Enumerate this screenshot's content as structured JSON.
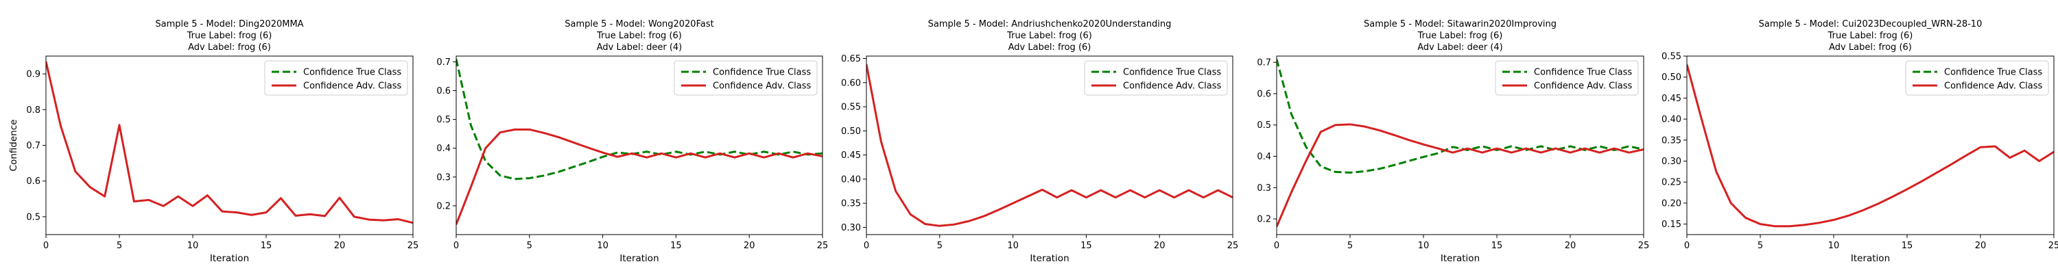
{
  "figure": {
    "background": "#ffffff"
  },
  "legend_labels": {
    "true_class": "Confidence True Class",
    "adv_class": "Confidence Adv. Class"
  },
  "series_colors": {
    "true_class": "#008000",
    "adv_class": "#d62020"
  },
  "chart_data": [
    {
      "type": "line",
      "title": [
        "Sample 5 - Model: Ding2020MMA",
        "True Label: frog (6)",
        "Adv Label: frog (6)"
      ],
      "xlabel": "Iteration",
      "ylabel": "Confidence",
      "xlim": [
        0,
        25
      ],
      "ylim": [
        0.45,
        0.95
      ],
      "xticks": [
        0,
        5,
        10,
        15,
        20,
        25
      ],
      "yticks": [
        0.5,
        0.6,
        0.7,
        0.8,
        0.9
      ],
      "ytick_labels": [
        "0.5",
        "0.6",
        "0.7",
        "0.8",
        "0.9"
      ],
      "legend_position": "upper right",
      "grid": false,
      "series": [
        {
          "key": "adv_class",
          "values": [
            [
              0,
              0.935
            ],
            [
              1,
              0.755
            ],
            [
              2,
              0.627
            ],
            [
              3,
              0.583
            ],
            [
              4,
              0.557
            ],
            [
              5,
              0.757
            ],
            [
              6,
              0.543
            ],
            [
              7,
              0.547
            ],
            [
              8,
              0.53
            ],
            [
              9,
              0.557
            ],
            [
              10,
              0.53
            ],
            [
              11,
              0.56
            ],
            [
              12,
              0.515
            ],
            [
              13,
              0.512
            ],
            [
              14,
              0.505
            ],
            [
              15,
              0.512
            ],
            [
              16,
              0.552
            ],
            [
              17,
              0.503
            ],
            [
              18,
              0.507
            ],
            [
              19,
              0.502
            ],
            [
              20,
              0.553
            ],
            [
              21,
              0.5
            ],
            [
              22,
              0.492
            ],
            [
              23,
              0.49
            ],
            [
              24,
              0.493
            ],
            [
              25,
              0.483
            ]
          ]
        }
      ]
    },
    {
      "type": "line",
      "title": [
        "Sample 5 - Model: Wong2020Fast",
        "True Label: frog (6)",
        "Adv Label: deer (4)"
      ],
      "xlabel": "Iteration",
      "ylabel": "",
      "xlim": [
        0,
        25
      ],
      "ylim": [
        0.1,
        0.72
      ],
      "xticks": [
        0,
        5,
        10,
        15,
        20,
        25
      ],
      "yticks": [
        0.2,
        0.3,
        0.4,
        0.5,
        0.6,
        0.7
      ],
      "ytick_labels": [
        "0.2",
        "0.3",
        "0.4",
        "0.5",
        "0.6",
        "0.7"
      ],
      "legend_position": "upper right",
      "grid": false,
      "series": [
        {
          "key": "true_class",
          "values": [
            [
              0,
              0.71
            ],
            [
              1,
              0.48
            ],
            [
              2,
              0.355
            ],
            [
              3,
              0.305
            ],
            [
              4,
              0.293
            ],
            [
              5,
              0.296
            ],
            [
              6,
              0.305
            ],
            [
              7,
              0.318
            ],
            [
              8,
              0.335
            ],
            [
              9,
              0.352
            ],
            [
              10,
              0.37
            ],
            [
              11,
              0.385
            ],
            [
              12,
              0.38
            ],
            [
              13,
              0.388
            ],
            [
              14,
              0.378
            ],
            [
              15,
              0.388
            ],
            [
              16,
              0.378
            ],
            [
              17,
              0.388
            ],
            [
              18,
              0.378
            ],
            [
              19,
              0.388
            ],
            [
              20,
              0.378
            ],
            [
              21,
              0.388
            ],
            [
              22,
              0.378
            ],
            [
              23,
              0.388
            ],
            [
              24,
              0.378
            ],
            [
              25,
              0.382
            ]
          ]
        },
        {
          "key": "adv_class",
          "values": [
            [
              0,
              0.135
            ],
            [
              1,
              0.265
            ],
            [
              2,
              0.4
            ],
            [
              3,
              0.455
            ],
            [
              4,
              0.465
            ],
            [
              5,
              0.465
            ],
            [
              6,
              0.453
            ],
            [
              7,
              0.438
            ],
            [
              8,
              0.42
            ],
            [
              9,
              0.402
            ],
            [
              10,
              0.385
            ],
            [
              11,
              0.37
            ],
            [
              12,
              0.382
            ],
            [
              13,
              0.368
            ],
            [
              14,
              0.382
            ],
            [
              15,
              0.368
            ],
            [
              16,
              0.382
            ],
            [
              17,
              0.368
            ],
            [
              18,
              0.382
            ],
            [
              19,
              0.368
            ],
            [
              20,
              0.382
            ],
            [
              21,
              0.368
            ],
            [
              22,
              0.382
            ],
            [
              23,
              0.368
            ],
            [
              24,
              0.382
            ],
            [
              25,
              0.372
            ]
          ]
        }
      ]
    },
    {
      "type": "line",
      "title": [
        "Sample 5 - Model: Andriushchenko2020Understanding",
        "True Label: frog (6)",
        "Adv Label: frog (6)"
      ],
      "xlabel": "Iteration",
      "ylabel": "",
      "xlim": [
        0,
        25
      ],
      "ylim": [
        0.285,
        0.655
      ],
      "xticks": [
        0,
        5,
        10,
        15,
        20,
        25
      ],
      "yticks": [
        0.3,
        0.35,
        0.4,
        0.45,
        0.5,
        0.55,
        0.6,
        0.65
      ],
      "ytick_labels": [
        "0.30",
        "0.35",
        "0.40",
        "0.45",
        "0.50",
        "0.55",
        "0.60",
        "0.65"
      ],
      "legend_position": "upper right",
      "grid": false,
      "series": [
        {
          "key": "adv_class",
          "values": [
            [
              0,
              0.638
            ],
            [
              1,
              0.478
            ],
            [
              2,
              0.375
            ],
            [
              3,
              0.327
            ],
            [
              4,
              0.307
            ],
            [
              5,
              0.303
            ],
            [
              6,
              0.306
            ],
            [
              7,
              0.313
            ],
            [
              8,
              0.323
            ],
            [
              9,
              0.336
            ],
            [
              10,
              0.35
            ],
            [
              11,
              0.364
            ],
            [
              12,
              0.378
            ],
            [
              13,
              0.362
            ],
            [
              14,
              0.377
            ],
            [
              15,
              0.362
            ],
            [
              16,
              0.377
            ],
            [
              17,
              0.362
            ],
            [
              18,
              0.377
            ],
            [
              19,
              0.362
            ],
            [
              20,
              0.377
            ],
            [
              21,
              0.362
            ],
            [
              22,
              0.377
            ],
            [
              23,
              0.362
            ],
            [
              24,
              0.377
            ],
            [
              25,
              0.362
            ]
          ]
        }
      ]
    },
    {
      "type": "line",
      "title": [
        "Sample 5 - Model: Sitawarin2020Improving",
        "True Label: frog (6)",
        "Adv Label: deer (4)"
      ],
      "xlabel": "Iteration",
      "ylabel": "",
      "xlim": [
        0,
        25
      ],
      "ylim": [
        0.15,
        0.72
      ],
      "xticks": [
        0,
        5,
        10,
        15,
        20,
        25
      ],
      "yticks": [
        0.2,
        0.3,
        0.4,
        0.5,
        0.6,
        0.7
      ],
      "ytick_labels": [
        "0.2",
        "0.3",
        "0.4",
        "0.5",
        "0.6",
        "0.7"
      ],
      "legend_position": "upper right",
      "grid": false,
      "series": [
        {
          "key": "true_class",
          "values": [
            [
              0,
              0.71
            ],
            [
              1,
              0.535
            ],
            [
              2,
              0.43
            ],
            [
              3,
              0.368
            ],
            [
              4,
              0.35
            ],
            [
              5,
              0.348
            ],
            [
              6,
              0.352
            ],
            [
              7,
              0.36
            ],
            [
              8,
              0.372
            ],
            [
              9,
              0.385
            ],
            [
              10,
              0.398
            ],
            [
              11,
              0.41
            ],
            [
              12,
              0.43
            ],
            [
              13,
              0.42
            ],
            [
              14,
              0.432
            ],
            [
              15,
              0.42
            ],
            [
              16,
              0.432
            ],
            [
              17,
              0.42
            ],
            [
              18,
              0.432
            ],
            [
              19,
              0.42
            ],
            [
              20,
              0.432
            ],
            [
              21,
              0.42
            ],
            [
              22,
              0.432
            ],
            [
              23,
              0.42
            ],
            [
              24,
              0.432
            ],
            [
              25,
              0.422
            ]
          ]
        },
        {
          "key": "adv_class",
          "values": [
            [
              0,
              0.175
            ],
            [
              1,
              0.285
            ],
            [
              2,
              0.385
            ],
            [
              3,
              0.478
            ],
            [
              4,
              0.5
            ],
            [
              5,
              0.502
            ],
            [
              6,
              0.495
            ],
            [
              7,
              0.483
            ],
            [
              8,
              0.468
            ],
            [
              9,
              0.452
            ],
            [
              10,
              0.438
            ],
            [
              11,
              0.425
            ],
            [
              12,
              0.412
            ],
            [
              13,
              0.425
            ],
            [
              14,
              0.412
            ],
            [
              15,
              0.425
            ],
            [
              16,
              0.412
            ],
            [
              17,
              0.425
            ],
            [
              18,
              0.412
            ],
            [
              19,
              0.425
            ],
            [
              20,
              0.412
            ],
            [
              21,
              0.425
            ],
            [
              22,
              0.412
            ],
            [
              23,
              0.425
            ],
            [
              24,
              0.412
            ],
            [
              25,
              0.422
            ]
          ]
        }
      ]
    },
    {
      "type": "line",
      "title": [
        "Sample 5 - Model: Cui2023Decoupled_WRN-28-10",
        "True Label: frog (6)",
        "Adv Label: frog (6)"
      ],
      "xlabel": "Iteration",
      "ylabel": "",
      "xlim": [
        0,
        25
      ],
      "ylim": [
        0.125,
        0.55
      ],
      "xticks": [
        0,
        5,
        10,
        15,
        20,
        25
      ],
      "yticks": [
        0.15,
        0.2,
        0.25,
        0.3,
        0.35,
        0.4,
        0.45,
        0.5,
        0.55
      ],
      "ytick_labels": [
        "0.15",
        "0.20",
        "0.25",
        "0.30",
        "0.35",
        "0.40",
        "0.45",
        "0.50",
        "0.55"
      ],
      "legend_position": "upper right",
      "grid": false,
      "series": [
        {
          "key": "adv_class",
          "values": [
            [
              0,
              0.53
            ],
            [
              1,
              0.4
            ],
            [
              2,
              0.275
            ],
            [
              3,
              0.2
            ],
            [
              4,
              0.165
            ],
            [
              5,
              0.15
            ],
            [
              6,
              0.145
            ],
            [
              7,
              0.145
            ],
            [
              8,
              0.148
            ],
            [
              9,
              0.153
            ],
            [
              10,
              0.16
            ],
            [
              11,
              0.17
            ],
            [
              12,
              0.183
            ],
            [
              13,
              0.198
            ],
            [
              14,
              0.215
            ],
            [
              15,
              0.233
            ],
            [
              16,
              0.252
            ],
            [
              17,
              0.272
            ],
            [
              18,
              0.292
            ],
            [
              19,
              0.313
            ],
            [
              20,
              0.333
            ],
            [
              21,
              0.335
            ],
            [
              22,
              0.308
            ],
            [
              23,
              0.325
            ],
            [
              24,
              0.3
            ],
            [
              25,
              0.322
            ]
          ]
        }
      ]
    }
  ]
}
